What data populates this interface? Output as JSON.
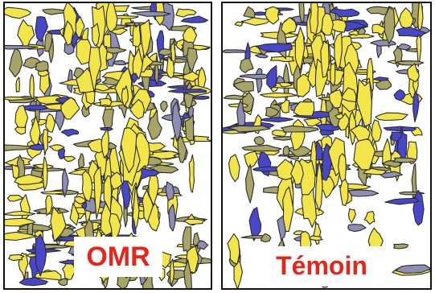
{
  "panels": [
    {
      "label": "OMR"
    },
    {
      "label": "Témoin"
    }
  ],
  "colors": {
    "yellow": "#f2e54a",
    "olive": "#a8a468",
    "blue": "#4747c8",
    "slate": "#8e8eb4",
    "outline": "#2a2a2a",
    "label": "#e8251a"
  }
}
